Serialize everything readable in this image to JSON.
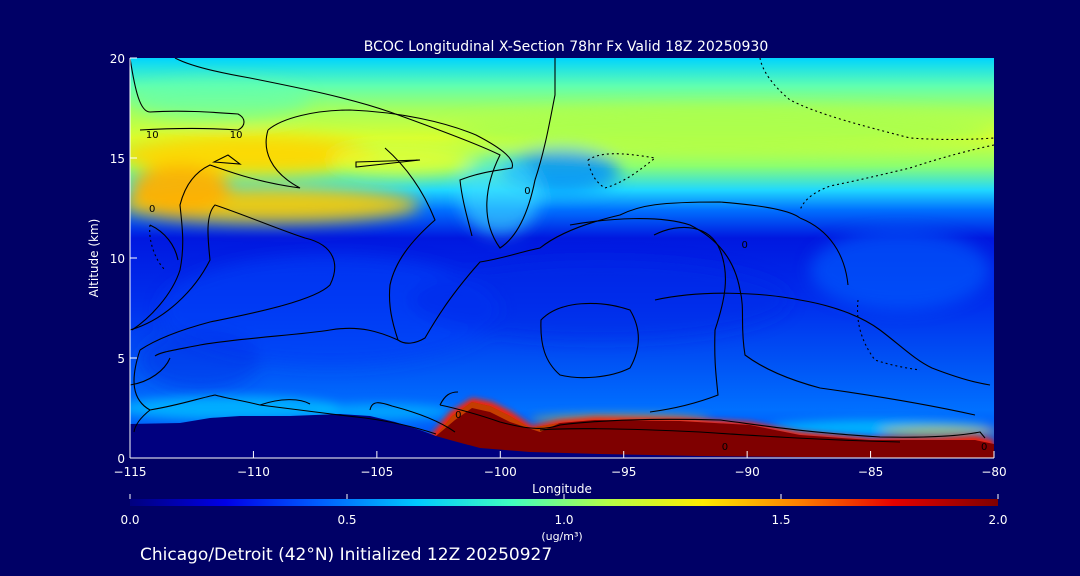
{
  "chart_data": {
    "type": "heatmap",
    "title": "BCOC Longitudinal X-Section 78hr  Fx Valid 18Z 20250930",
    "xlabel": "Longitude",
    "ylabel": "Altitude (km)",
    "xlim": [
      -115,
      -80
    ],
    "ylim": [
      0,
      20
    ],
    "x_ticks": [
      -115,
      -110,
      -105,
      -100,
      -95,
      -90,
      -85,
      -80
    ],
    "x_tick_labels": [
      "−115",
      "−110",
      "−105",
      "−100",
      "−95",
      "−90",
      "−85",
      "−80"
    ],
    "y_ticks": [
      0,
      5,
      10,
      15,
      20
    ],
    "y_tick_labels": [
      "0",
      "5",
      "10",
      "15",
      "20"
    ],
    "colorbar": {
      "min": 0.0,
      "max": 2.0,
      "ticks": [
        0.0,
        0.5,
        1.0,
        1.5,
        2.0
      ],
      "tick_labels": [
        "0.0",
        "0.5",
        "1.0",
        "1.5",
        "2.0"
      ],
      "units": "(ug/m³)",
      "colors": [
        "#00007f",
        "#0000e6",
        "#0060ff",
        "#00c8ff",
        "#40ffbf",
        "#b4ff48",
        "#ffea00",
        "#ff8000",
        "#e60000",
        "#7f0000"
      ]
    },
    "contour_labels": [
      {
        "text": "10",
        "lon": -114.1,
        "alt": 16.2
      },
      {
        "text": "0",
        "lon": -114.1,
        "alt": 12.5
      },
      {
        "text": "10",
        "lon": -110.7,
        "alt": 16.2
      },
      {
        "text": "0",
        "lon": -98.9,
        "alt": 13.4
      },
      {
        "text": "0",
        "lon": -90.1,
        "alt": 10.7
      },
      {
        "text": "0",
        "lon": -101.7,
        "alt": 2.2
      },
      {
        "text": "0",
        "lon": -90.9,
        "alt": 0.6
      },
      {
        "text": "0",
        "lon": -80.4,
        "alt": 0.6
      }
    ]
  },
  "footer": "Chicago/Detroit (42°N) Initialized 12Z 20250927"
}
